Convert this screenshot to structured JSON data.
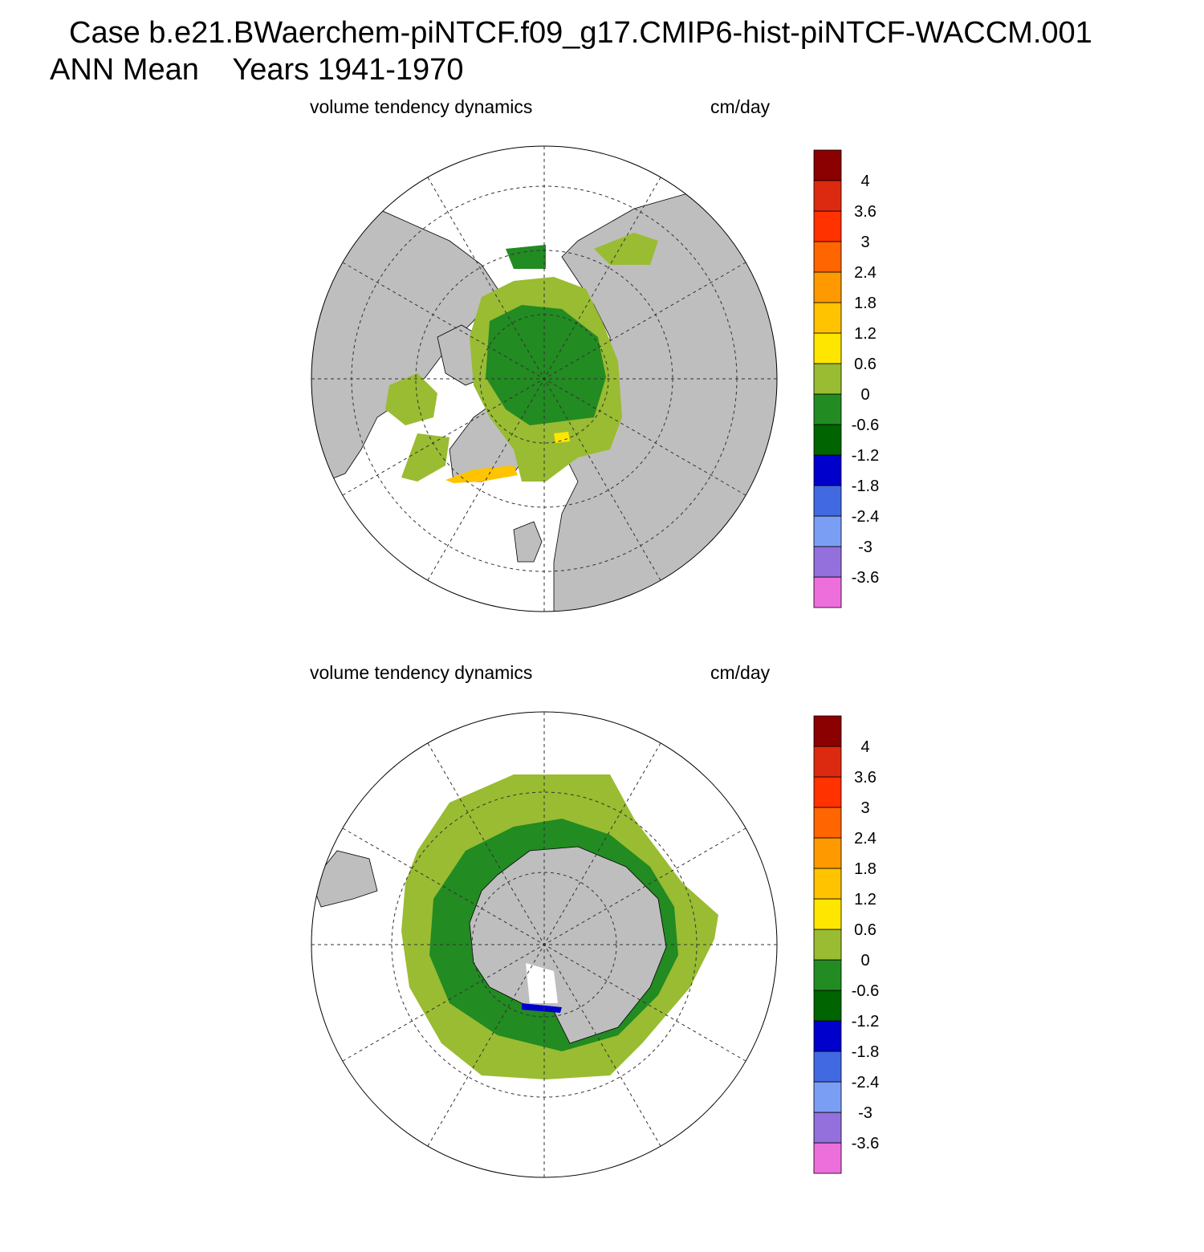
{
  "header": {
    "case_line": "Case b.e21.BWaerchem-piNTCF.f09_g17.CMIP6-hist-piNTCF-WACCM.001",
    "mean_line": "ANN Mean    Years 1941-1970"
  },
  "colors": {
    "land": "#bebebe",
    "ocean": "#ffffff",
    "levels": [
      "#ed6fdc",
      "#9370db",
      "#7b9ef5",
      "#4169e1",
      "#0000cd",
      "#006400",
      "#228b22",
      "#99bc32",
      "#ffe600",
      "#ffc300",
      "#ff9900",
      "#ff6500",
      "#ff3200",
      "#dc2a10",
      "#8b0000"
    ]
  },
  "panels": [
    {
      "hemisphere": "north",
      "variable_label": "volume tendency dynamics",
      "units_label": "cm/day",
      "colorbar": {
        "ticks": [
          "-3.6",
          "-3",
          "-2.4",
          "-1.8",
          "-1.2",
          "-0.6",
          "0",
          "0.6",
          "1.2",
          "1.8",
          "2.4",
          "3",
          "3.6",
          "4"
        ]
      }
    },
    {
      "hemisphere": "south",
      "variable_label": "volume tendency dynamics",
      "units_label": "cm/day",
      "colorbar": {
        "ticks": [
          "-3.6",
          "-3",
          "-2.4",
          "-1.8",
          "-1.2",
          "-0.6",
          "0",
          "0.6",
          "1.2",
          "1.8",
          "2.4",
          "3",
          "3.6",
          "4"
        ]
      }
    }
  ]
}
